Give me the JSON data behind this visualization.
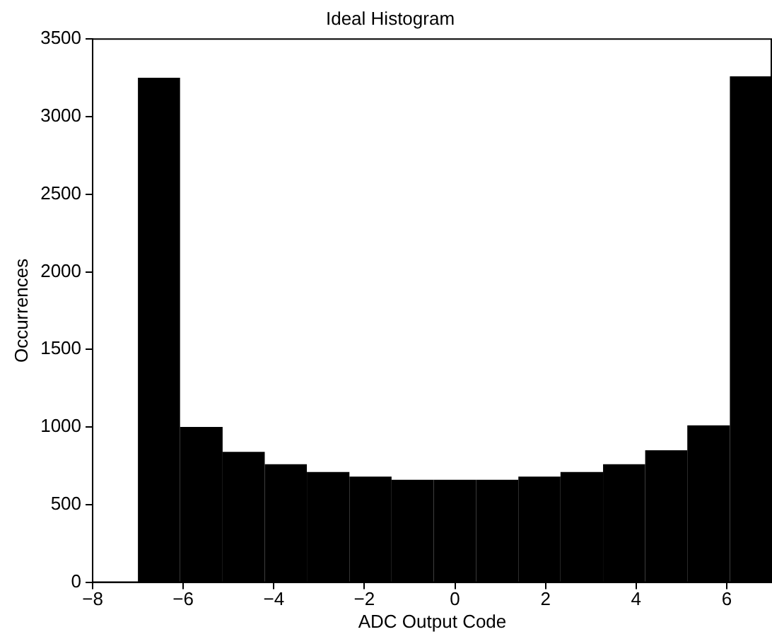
{
  "chart_data": {
    "type": "histogram",
    "title": "Ideal Histogram",
    "xlabel": "ADC Output Code",
    "ylabel": "Occurrences",
    "bins": [
      -7,
      -6.07,
      -5.13,
      -4.2,
      -3.27,
      -2.33,
      -1.4,
      -0.47,
      0.47,
      1.4,
      2.33,
      3.27,
      4.2,
      5.13,
      6.07,
      7
    ],
    "values": [
      3250,
      1000,
      840,
      760,
      710,
      680,
      660,
      660,
      660,
      680,
      710,
      760,
      850,
      1010,
      3260
    ],
    "color": "#000000",
    "xlim": [
      -8,
      7
    ],
    "xticks": [
      -8,
      -6,
      -4,
      -2,
      0,
      2,
      4,
      6
    ],
    "ylim": [
      0,
      3500
    ],
    "yticks": [
      0,
      500,
      1000,
      1500,
      2000,
      2500,
      3000,
      3500
    ],
    "grid": false,
    "legend": false
  }
}
